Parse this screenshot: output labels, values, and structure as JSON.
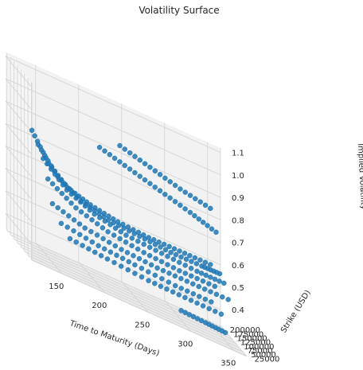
{
  "chart_data": {
    "type": "scatter",
    "projection": "3d",
    "title": "Volatility Surface",
    "xlabel": "Time to Maturity (Days)",
    "ylabel": "Strike (USD)",
    "zlabel": "Implied Volatility",
    "xlim": [
      115,
      365
    ],
    "ylim": [
      22000,
      210000
    ],
    "zlim": [
      0.33,
      1.12
    ],
    "xticks": [
      150,
      200,
      250,
      300,
      350
    ],
    "yticks": [
      25000,
      50000,
      75000,
      100000,
      125000,
      150000,
      175000,
      200000
    ],
    "zticks": [
      0.4,
      0.5,
      0.6,
      0.7,
      0.8,
      0.9,
      1.0,
      1.1
    ],
    "grid": true,
    "marker_color": "#1f77b4",
    "series": [
      {
        "x": [
          118,
          140,
          165,
          195,
          230,
          270,
          310,
          350
        ],
        "y": [
          40000,
          55000,
          75000,
          95000,
          115000,
          140000,
          165000,
          190000
        ],
        "z": [
          0.9,
          0.78,
          0.7,
          0.66,
          0.63,
          0.61,
          0.6,
          0.59
        ]
      },
      {
        "x": [
          125,
          150,
          180,
          215,
          255,
          295,
          335,
          360
        ],
        "y": [
          38000,
          52000,
          70000,
          90000,
          112000,
          135000,
          160000,
          185000
        ],
        "z": [
          0.85,
          0.74,
          0.67,
          0.63,
          0.61,
          0.59,
          0.58,
          0.57
        ]
      },
      {
        "x": [
          130,
          160,
          195,
          235,
          280,
          325,
          360
        ],
        "y": [
          33000,
          48000,
          66000,
          86000,
          108000,
          132000,
          155000
        ],
        "z": [
          0.8,
          0.7,
          0.64,
          0.6,
          0.58,
          0.56,
          0.55
        ]
      },
      {
        "x": [
          135,
          170,
          210,
          255,
          300,
          345
        ],
        "y": [
          30000,
          45000,
          62000,
          82000,
          104000,
          128000
        ],
        "z": [
          0.72,
          0.64,
          0.59,
          0.56,
          0.54,
          0.53
        ]
      },
      {
        "x": [
          140,
          180,
          225,
          270,
          315,
          360
        ],
        "y": [
          28000,
          42000,
          58000,
          78000,
          100000,
          124000
        ],
        "z": [
          0.62,
          0.57,
          0.54,
          0.52,
          0.51,
          0.5
        ]
      },
      {
        "x": [
          150,
          195,
          240,
          290,
          335
        ],
        "y": [
          27000,
          38000,
          54000,
          72000,
          92000
        ],
        "z": [
          0.55,
          0.52,
          0.5,
          0.48,
          0.47
        ]
      },
      {
        "x": [
          160,
          205,
          255,
          300,
          345
        ],
        "y": [
          26000,
          35000,
          48000,
          64000,
          82000
        ],
        "z": [
          0.5,
          0.48,
          0.46,
          0.45,
          0.44
        ]
      },
      {
        "x": [
          200,
          240,
          280,
          320,
          355
        ],
        "y": [
          60000,
          90000,
          120000,
          150000,
          180000
        ],
        "z": [
          0.95,
          0.9,
          0.85,
          0.8,
          0.75
        ]
      },
      {
        "x": [
          230,
          270,
          310,
          350
        ],
        "y": [
          100000,
          130000,
          160000,
          190000
        ],
        "z": [
          0.98,
          0.93,
          0.88,
          0.84
        ]
      },
      {
        "x": [
          290,
          320,
          345
        ],
        "y": [
          30000,
          40000,
          52000
        ],
        "z": [
          0.4,
          0.39,
          0.38
        ]
      }
    ]
  }
}
